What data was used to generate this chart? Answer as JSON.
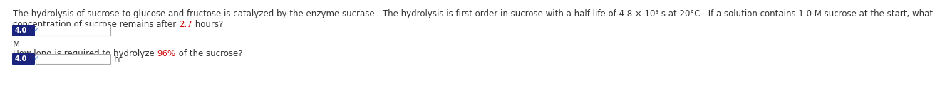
{
  "line1": "The hydrolysis of sucrose to glucose and fructose is catalyzed by the enzyme sucrase.  The hydrolysis is first order in sucrose with a half-life of 4.8 × 10³ s at 20°C.  If a solution contains 1.0 M sucrose at the start, what",
  "line2_pre": "concentration of sucrose remains after ",
  "line2_highlight": "2.7",
  "line2_post": " hours?",
  "answer1_label": "4.0",
  "answer1_unit": "M",
  "line3_pre": "How long is required to hydrolyze ",
  "line3_highlight": "96%",
  "line3_post": " of the sucrose?",
  "answer2_label": "4.0",
  "answer2_unit": "hr",
  "text_color": "#333333",
  "highlight_color": "#cc0000",
  "badge_bg": "#1a237e",
  "badge_text": "#ffffff",
  "check_color": "#5599dd",
  "input_border_color": "#aaaaaa",
  "bg_color": "#ffffff",
  "font_size": 8.5
}
